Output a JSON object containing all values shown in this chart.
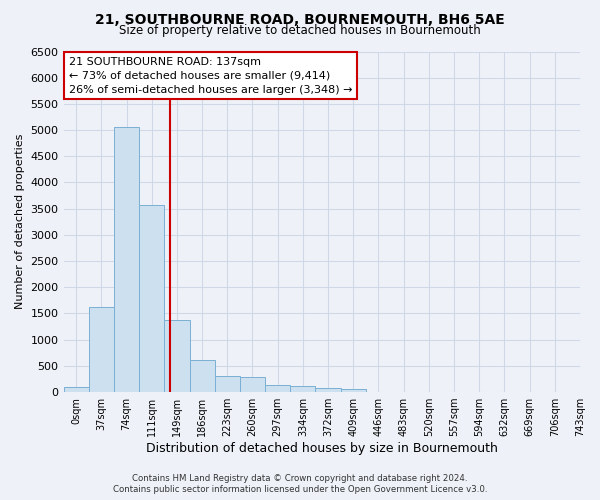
{
  "title": "21, SOUTHBOURNE ROAD, BOURNEMOUTH, BH6 5AE",
  "subtitle": "Size of property relative to detached houses in Bournemouth",
  "xlabel": "Distribution of detached houses by size in Bournemouth",
  "ylabel": "Number of detached properties",
  "footer_line1": "Contains HM Land Registry data © Crown copyright and database right 2024.",
  "footer_line2": "Contains public sector information licensed under the Open Government Licence v3.0.",
  "bin_labels": [
    "0sqm",
    "37sqm",
    "74sqm",
    "111sqm",
    "149sqm",
    "186sqm",
    "223sqm",
    "260sqm",
    "297sqm",
    "334sqm",
    "372sqm",
    "409sqm",
    "446sqm",
    "483sqm",
    "520sqm",
    "557sqm",
    "594sqm",
    "632sqm",
    "669sqm",
    "706sqm",
    "743sqm"
  ],
  "bar_values": [
    100,
    1620,
    5050,
    3580,
    1380,
    610,
    300,
    290,
    140,
    110,
    70,
    50,
    10,
    5,
    2,
    1,
    0,
    0,
    0,
    0
  ],
  "bar_color": "#cce0f0",
  "bar_edge_color": "#7ab0d4",
  "grid_color": "#d0d8e8",
  "background_color": "#eef2f8",
  "red_line_x": 3.73,
  "annotation_line1": "21 SOUTHBOURNE ROAD: 137sqm",
  "annotation_line2": "← 73% of detached houses are smaller (9,414)",
  "annotation_line3": "26% of semi-detached houses are larger (3,348) →",
  "annotation_box_color": "#ffffff",
  "annotation_edge_color": "#cc0000",
  "ylim": [
    0,
    6500
  ],
  "yticks": [
    0,
    500,
    1000,
    1500,
    2000,
    2500,
    3000,
    3500,
    4000,
    4500,
    5000,
    5500,
    6000,
    6500
  ]
}
